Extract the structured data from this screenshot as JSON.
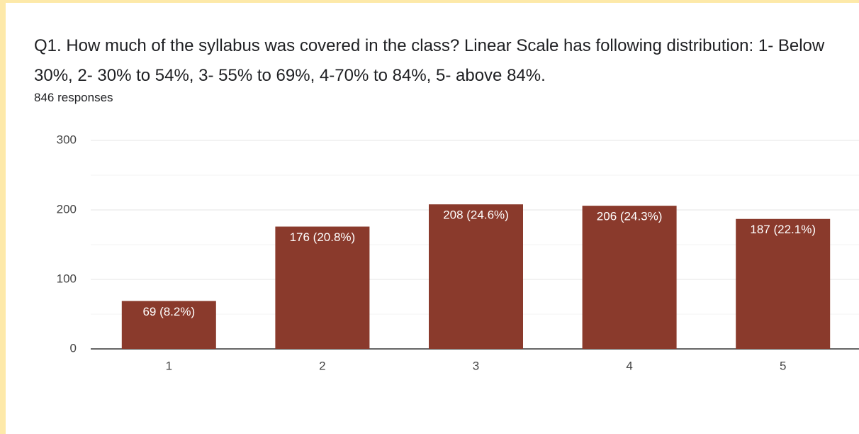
{
  "chart_data": {
    "type": "bar",
    "title": "Q1. How much of the syllabus was covered in the class? Linear Scale has following distribution: 1- Below 30%, 2- 30% to 54%, 3- 55% to 69%, 4-70% to 84%, 5- above 84%.",
    "subtitle": "846 responses",
    "categories": [
      "1",
      "2",
      "3",
      "4",
      "5"
    ],
    "values": [
      69,
      176,
      208,
      206,
      187
    ],
    "value_labels": [
      "69 (8.2%)",
      "176 (20.8%)",
      "208 (24.6%)",
      "206 (24.3%)",
      "187 (22.1%)"
    ],
    "color": "#8a3a2c",
    "ylim": [
      0,
      300
    ],
    "yticks": [
      0,
      100,
      200,
      300
    ],
    "minor_yticks": [
      50,
      150,
      250
    ],
    "grid": true
  }
}
